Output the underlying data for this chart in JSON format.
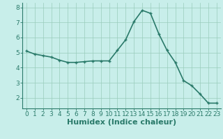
{
  "x": [
    0,
    1,
    2,
    3,
    4,
    5,
    6,
    7,
    8,
    9,
    10,
    11,
    12,
    13,
    14,
    15,
    16,
    17,
    18,
    19,
    20,
    21,
    22,
    23
  ],
  "y": [
    5.1,
    4.9,
    4.8,
    4.7,
    4.5,
    4.35,
    4.35,
    4.4,
    4.45,
    4.45,
    4.45,
    5.15,
    5.85,
    7.05,
    7.8,
    7.6,
    6.25,
    5.15,
    4.35,
    3.15,
    2.8,
    2.25,
    1.65,
    1.65
  ],
  "line_color": "#2a7a6a",
  "marker": "+",
  "bg_color": "#c8eeea",
  "grid_color": "#99ccbb",
  "xlabel": "Humidex (Indice chaleur)",
  "xlabel_fontsize": 8,
  "ylim": [
    1.3,
    8.3
  ],
  "xlim": [
    -0.5,
    23.5
  ],
  "yticks": [
    2,
    3,
    4,
    5,
    6,
    7,
    8
  ],
  "xticks": [
    0,
    1,
    2,
    3,
    4,
    5,
    6,
    7,
    8,
    9,
    10,
    11,
    12,
    13,
    14,
    15,
    16,
    17,
    18,
    19,
    20,
    21,
    22,
    23
  ],
  "tick_fontsize": 6.5,
  "axis_color": "#2a7a6a",
  "linewidth": 1.2,
  "markersize": 3.5,
  "markeredgewidth": 1.0
}
